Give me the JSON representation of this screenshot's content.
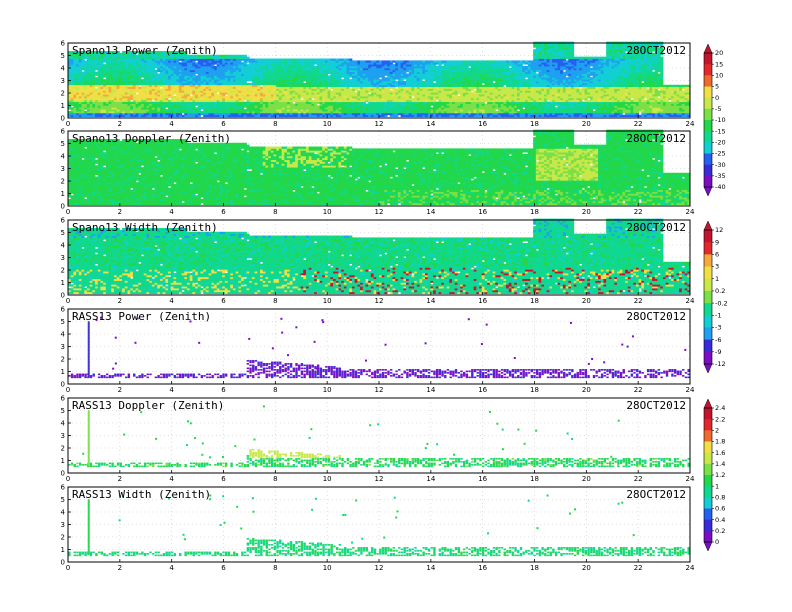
{
  "chart_data": [
    {
      "type": "heatmap",
      "title": "Spano13 Power (Zenith)",
      "date": "28OCT2012",
      "x_ticks": [
        0,
        2,
        4,
        6,
        8,
        10,
        12,
        14,
        16,
        18,
        20,
        22,
        24
      ],
      "y_ticks": [
        0,
        1,
        2,
        3,
        4,
        5,
        6
      ],
      "xlim": [
        0,
        24
      ],
      "ylim": [
        0,
        6
      ],
      "field": "power",
      "colorbar": "scale_a"
    },
    {
      "type": "heatmap",
      "title": "Spano13 Doppler (Zenith)",
      "date": "28OCT2012",
      "x_ticks": [
        0,
        2,
        4,
        6,
        8,
        10,
        12,
        14,
        16,
        18,
        20,
        22,
        24
      ],
      "y_ticks": [
        0,
        1,
        2,
        3,
        4,
        5,
        6
      ],
      "xlim": [
        0,
        24
      ],
      "ylim": [
        0,
        6
      ],
      "field": "doppler"
    },
    {
      "type": "heatmap",
      "title": "Spano13 Width (Zenith)",
      "date": "28OCT2012",
      "x_ticks": [
        0,
        2,
        4,
        6,
        8,
        10,
        12,
        14,
        16,
        18,
        20,
        22,
        24
      ],
      "y_ticks": [
        0,
        1,
        2,
        3,
        4,
        5,
        6
      ],
      "xlim": [
        0,
        24
      ],
      "ylim": [
        0,
        6
      ],
      "field": "width",
      "colorbar": "scale_b"
    },
    {
      "type": "heatmap",
      "title": "RASS13 Power (Zenith)",
      "date": "28OCT2012",
      "x_ticks": [
        0,
        2,
        4,
        6,
        8,
        10,
        12,
        14,
        16,
        18,
        20,
        22,
        24
      ],
      "y_ticks": [
        0,
        1,
        2,
        3,
        4,
        5,
        6
      ],
      "xlim": [
        0,
        24
      ],
      "ylim": [
        0,
        6
      ],
      "field": "rpower"
    },
    {
      "type": "heatmap",
      "title": "RASS13 Doppler (Zenith)",
      "date": "28OCT2012",
      "x_ticks": [
        0,
        2,
        4,
        6,
        8,
        10,
        12,
        14,
        16,
        18,
        20,
        22,
        24
      ],
      "y_ticks": [
        0,
        1,
        2,
        3,
        4,
        5,
        6
      ],
      "xlim": [
        0,
        24
      ],
      "ylim": [
        0,
        6
      ],
      "field": "rdoppler",
      "colorbar": "scale_c"
    },
    {
      "type": "heatmap",
      "title": "RASS13 Width (Zenith)",
      "date": "28OCT2012",
      "x_ticks": [
        0,
        2,
        4,
        6,
        8,
        10,
        12,
        14,
        16,
        18,
        20,
        22,
        24
      ],
      "y_ticks": [
        0,
        1,
        2,
        3,
        4,
        5,
        6
      ],
      "xlim": [
        0,
        24
      ],
      "ylim": [
        0,
        6
      ],
      "field": "rwidth"
    }
  ],
  "colorbars": {
    "scale_a": {
      "labels": [
        "20",
        "15",
        "10",
        "5",
        "0",
        "-5",
        "-10",
        "-15",
        "-20",
        "-25",
        "-30",
        "-35",
        "-40"
      ]
    },
    "scale_b": {
      "labels": [
        "12",
        "9",
        "6",
        "3",
        "1",
        "0.2",
        "-0.2",
        "-1",
        "-3",
        "-6",
        "-9",
        "-12"
      ]
    },
    "scale_c": {
      "labels": [
        "2.4",
        "2.2",
        "2",
        "1.8",
        "1.6",
        "1.4",
        "1.2",
        "1",
        "0.8",
        "0.6",
        "0.4",
        "0.2",
        "0"
      ]
    }
  },
  "colors": {
    "palette": [
      "#7b0ec4",
      "#3a2bd8",
      "#2560f0",
      "#1fa0f0",
      "#12cfd6",
      "#10d98f",
      "#22d84a",
      "#7ae046",
      "#c8e84a",
      "#f2df46",
      "#f5a83c",
      "#f06a2e",
      "#e2282a",
      "#c5142e"
    ]
  }
}
